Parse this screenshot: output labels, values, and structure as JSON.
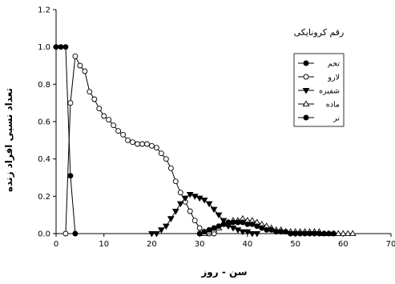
{
  "chart_data": {
    "type": "line",
    "title": "",
    "xlabel": "سن - روز",
    "ylabel": "تعداد نسبی افراد زنده",
    "xlim": [
      0,
      70
    ],
    "ylim": [
      0,
      1.2
    ],
    "xticks": [
      "0",
      "10",
      "20",
      "30",
      "40",
      "50",
      "60",
      "70"
    ],
    "yticks": [
      "0.0",
      "0.2",
      "0.4",
      "0.6",
      "0.8",
      "1.0",
      "1.2"
    ],
    "grid": false,
    "legend_title": "رقم کرونایکی",
    "legend_position": "top-right",
    "series": [
      {
        "name": "تخم",
        "marker": "circle-filled",
        "points": [
          [
            0,
            1.0
          ],
          [
            1,
            1.0
          ],
          [
            2,
            1.0
          ],
          [
            3,
            0.31
          ],
          [
            4,
            0.0
          ]
        ]
      },
      {
        "name": "لارو",
        "marker": "circle-open",
        "points": [
          [
            2,
            0.0
          ],
          [
            3,
            0.7
          ],
          [
            4,
            0.95
          ],
          [
            5,
            0.9
          ],
          [
            6,
            0.87
          ],
          [
            7,
            0.76
          ],
          [
            8,
            0.72
          ],
          [
            9,
            0.67
          ],
          [
            10,
            0.63
          ],
          [
            11,
            0.61
          ],
          [
            12,
            0.58
          ],
          [
            13,
            0.55
          ],
          [
            14,
            0.53
          ],
          [
            15,
            0.5
          ],
          [
            16,
            0.49
          ],
          [
            17,
            0.48
          ],
          [
            18,
            0.48
          ],
          [
            19,
            0.48
          ],
          [
            20,
            0.47
          ],
          [
            21,
            0.46
          ],
          [
            22,
            0.43
          ],
          [
            23,
            0.4
          ],
          [
            24,
            0.35
          ],
          [
            25,
            0.28
          ],
          [
            26,
            0.22
          ],
          [
            27,
            0.17
          ],
          [
            28,
            0.12
          ],
          [
            29,
            0.07
          ],
          [
            30,
            0.03
          ],
          [
            31,
            0.01
          ],
          [
            32,
            0.0
          ],
          [
            33,
            0.0
          ]
        ]
      },
      {
        "name": "شفیره",
        "marker": "triangle-down-filled",
        "points": [
          [
            20,
            0.0
          ],
          [
            21,
            0.0
          ],
          [
            22,
            0.02
          ],
          [
            23,
            0.04
          ],
          [
            24,
            0.08
          ],
          [
            25,
            0.12
          ],
          [
            26,
            0.16
          ],
          [
            27,
            0.19
          ],
          [
            28,
            0.21
          ],
          [
            29,
            0.2
          ],
          [
            30,
            0.19
          ],
          [
            31,
            0.18
          ],
          [
            32,
            0.16
          ],
          [
            33,
            0.13
          ],
          [
            34,
            0.1
          ],
          [
            35,
            0.07
          ],
          [
            36,
            0.04
          ],
          [
            37,
            0.03
          ],
          [
            38,
            0.02
          ],
          [
            39,
            0.01
          ],
          [
            40,
            0.01
          ],
          [
            41,
            0.0
          ],
          [
            42,
            0.0
          ]
        ]
      },
      {
        "name": "ماده",
        "marker": "triangle-up-open",
        "points": [
          [
            31,
            0.0
          ],
          [
            32,
            0.01
          ],
          [
            33,
            0.02
          ],
          [
            34,
            0.03
          ],
          [
            35,
            0.05
          ],
          [
            36,
            0.06
          ],
          [
            37,
            0.07
          ],
          [
            38,
            0.07
          ],
          [
            39,
            0.08
          ],
          [
            40,
            0.07
          ],
          [
            41,
            0.07
          ],
          [
            42,
            0.06
          ],
          [
            43,
            0.05
          ],
          [
            44,
            0.04
          ],
          [
            45,
            0.03
          ],
          [
            46,
            0.02
          ],
          [
            47,
            0.02
          ],
          [
            48,
            0.01
          ],
          [
            49,
            0.01
          ],
          [
            50,
            0.01
          ],
          [
            51,
            0.01
          ],
          [
            52,
            0.01
          ],
          [
            53,
            0.01
          ],
          [
            54,
            0.01
          ],
          [
            55,
            0.01
          ],
          [
            56,
            0.0
          ],
          [
            57,
            0.0
          ],
          [
            58,
            0.0
          ],
          [
            59,
            0.0
          ],
          [
            60,
            0.0
          ],
          [
            61,
            0.0
          ],
          [
            62,
            0.0
          ]
        ]
      },
      {
        "name": "نر",
        "marker": "circle-filled",
        "points": [
          [
            30,
            0.0
          ],
          [
            31,
            0.01
          ],
          [
            32,
            0.02
          ],
          [
            33,
            0.03
          ],
          [
            34,
            0.04
          ],
          [
            35,
            0.05
          ],
          [
            36,
            0.06
          ],
          [
            37,
            0.06
          ],
          [
            38,
            0.06
          ],
          [
            39,
            0.06
          ],
          [
            40,
            0.05
          ],
          [
            41,
            0.05
          ],
          [
            42,
            0.04
          ],
          [
            43,
            0.03
          ],
          [
            44,
            0.02
          ],
          [
            45,
            0.02
          ],
          [
            46,
            0.01
          ],
          [
            47,
            0.01
          ],
          [
            48,
            0.01
          ],
          [
            49,
            0.0
          ],
          [
            50,
            0.0
          ],
          [
            51,
            0.0
          ],
          [
            52,
            0.0
          ],
          [
            53,
            0.0
          ],
          [
            54,
            0.0
          ],
          [
            55,
            0.0
          ],
          [
            56,
            0.0
          ],
          [
            57,
            0.0
          ],
          [
            58,
            0.0
          ]
        ]
      }
    ]
  }
}
